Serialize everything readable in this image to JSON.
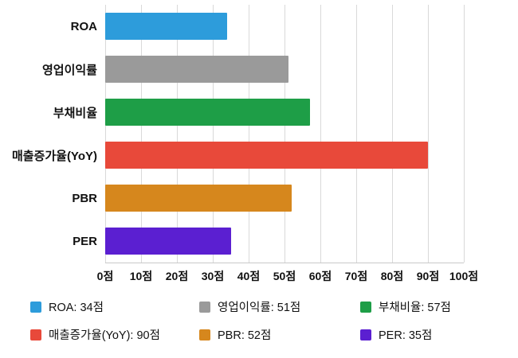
{
  "chart_data": {
    "type": "bar",
    "orientation": "horizontal",
    "title": "",
    "categories": [
      "ROA",
      "영업이익률",
      "부채비율",
      "매출증가율(YoY)",
      "PBR",
      "PER"
    ],
    "values": [
      34,
      51,
      57,
      90,
      52,
      35
    ],
    "colors": [
      "#2D9CDB",
      "#9A9A9A",
      "#1E9E47",
      "#E8493A",
      "#D6871D",
      "#5B1FD1"
    ],
    "unit": "점",
    "xlim": [
      0,
      100
    ],
    "xtick_step": 10,
    "xtick_labels": [
      "0점",
      "10점",
      "20점",
      "30점",
      "40점",
      "50점",
      "60점",
      "70점",
      "80점",
      "90점",
      "100점"
    ],
    "grid": true,
    "legend_position": "bottom",
    "legend_entries": [
      {
        "label": "ROA: 34점",
        "color": "#2D9CDB"
      },
      {
        "label": "영업이익률: 51점",
        "color": "#9A9A9A"
      },
      {
        "label": "부채비율: 57점",
        "color": "#1E9E47"
      },
      {
        "label": "매출증가율(YoY): 90점",
        "color": "#E8493A"
      },
      {
        "label": "PBR: 52점",
        "color": "#D6871D"
      },
      {
        "label": "PER: 35점",
        "color": "#5B1FD1"
      }
    ],
    "gridline_color": "#d9d9d9",
    "axis_line_color": "#c9c9c9"
  }
}
